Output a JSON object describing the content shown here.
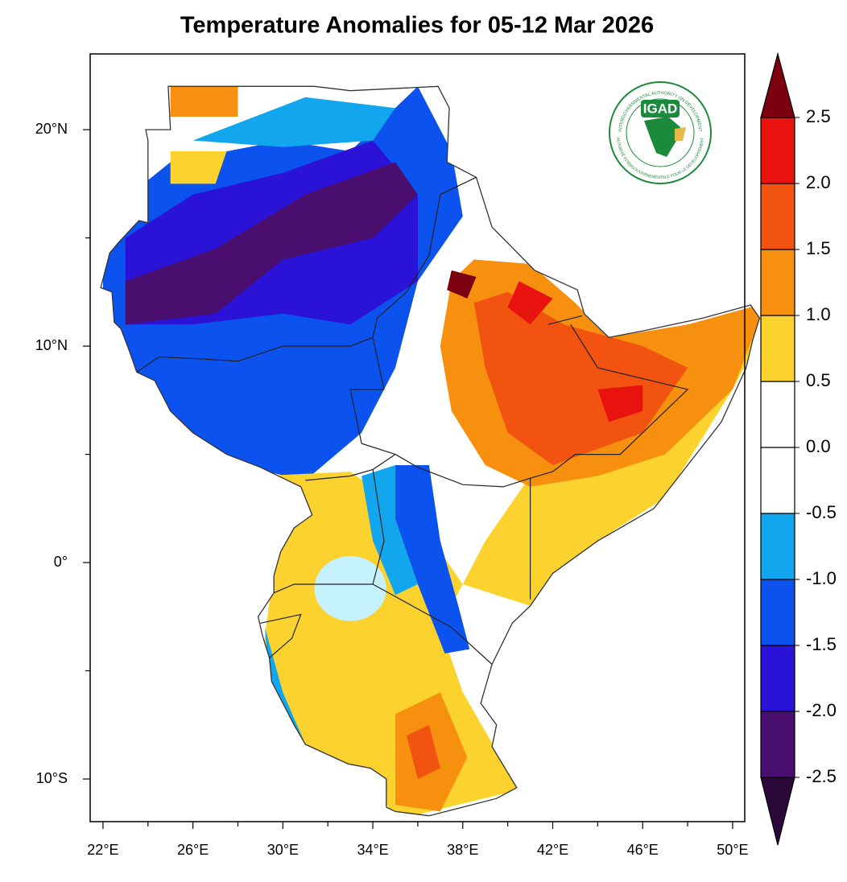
{
  "chart_data": {
    "type": "map",
    "title": "Temperature Anomalies for 05-12 Mar 2026",
    "xlim": [
      21.43,
      50.54
    ],
    "ylim": [
      -11.97,
      23.5
    ],
    "xticks": [
      {
        "value": 22,
        "label": "22°E"
      },
      {
        "value": 26,
        "label": "26°E"
      },
      {
        "value": 30,
        "label": "30°E"
      },
      {
        "value": 34,
        "label": "34°E"
      },
      {
        "value": 38,
        "label": "38°E"
      },
      {
        "value": 42,
        "label": "42°E"
      },
      {
        "value": 46,
        "label": "46°E"
      },
      {
        "value": 50,
        "label": "50°E"
      }
    ],
    "xminorticks": [
      24,
      28,
      32,
      36,
      40,
      44,
      48
    ],
    "yticks": [
      {
        "value": 20,
        "label": "20°N"
      },
      {
        "value": 10,
        "label": "10°N"
      },
      {
        "value": 0,
        "label": "0°"
      },
      {
        "value": -10,
        "label": "10°S"
      }
    ],
    "yminorticks": [
      15,
      5,
      -5
    ],
    "colorbar": {
      "levels": [
        -2.5,
        {
          "value": -2,
          "label": "-2.0"
        },
        -1.5,
        {
          "value": -1,
          "label": "-1.0"
        },
        -0.5,
        {
          "value": 0,
          "label": "0.0"
        },
        0.5,
        {
          "value": 1,
          "label": "1.0"
        },
        1.5,
        {
          "value": 2,
          "label": "2.0"
        },
        2.5
      ],
      "colors": [
        "#2b0839",
        "#4a0f6e",
        "#2a12d6",
        "#0b52ef",
        "#12a6ee",
        "#ffffff",
        "#ffffff",
        "#fbd22e",
        "#f8900f",
        "#f25310",
        "#e8120f",
        "#7d0010"
      ]
    },
    "logo": {
      "text": "IGAD",
      "ring_top": "INTERGOVERNMENTAL AUTHORITY ON DEVELOPMENT",
      "ring_bottom": "AUTORITÉ INTERGOUVERNEMENTALE POUR LE DÉVELOPPEMENT"
    }
  }
}
